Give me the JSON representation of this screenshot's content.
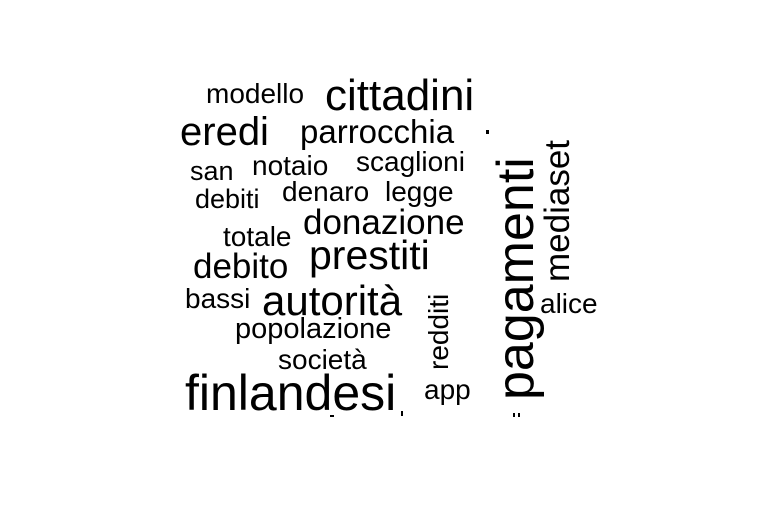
{
  "words": {
    "cittadini": "cittadini",
    "modello": "modello",
    "eredi": "eredi",
    "parrocchia": "parrocchia",
    "san": "san",
    "notaio": "notaio",
    "scaglioni": "scaglioni",
    "debiti": "debiti",
    "denaro": "denaro",
    "legge": "legge",
    "donazione": "donazione",
    "totale": "totale",
    "prestiti": "prestiti",
    "debito": "debito",
    "bassi": "bassi",
    "autorita": "autorità",
    "popolazione": "popolazione",
    "alice": "alice",
    "societa": "società",
    "finlandesi": "finlandesi",
    "app": "app",
    "redditi": "redditi",
    "pagamenti": "pagamenti",
    "mediaset": "mediaset"
  },
  "colors": {
    "text": "#000000",
    "background": "#ffffff"
  }
}
